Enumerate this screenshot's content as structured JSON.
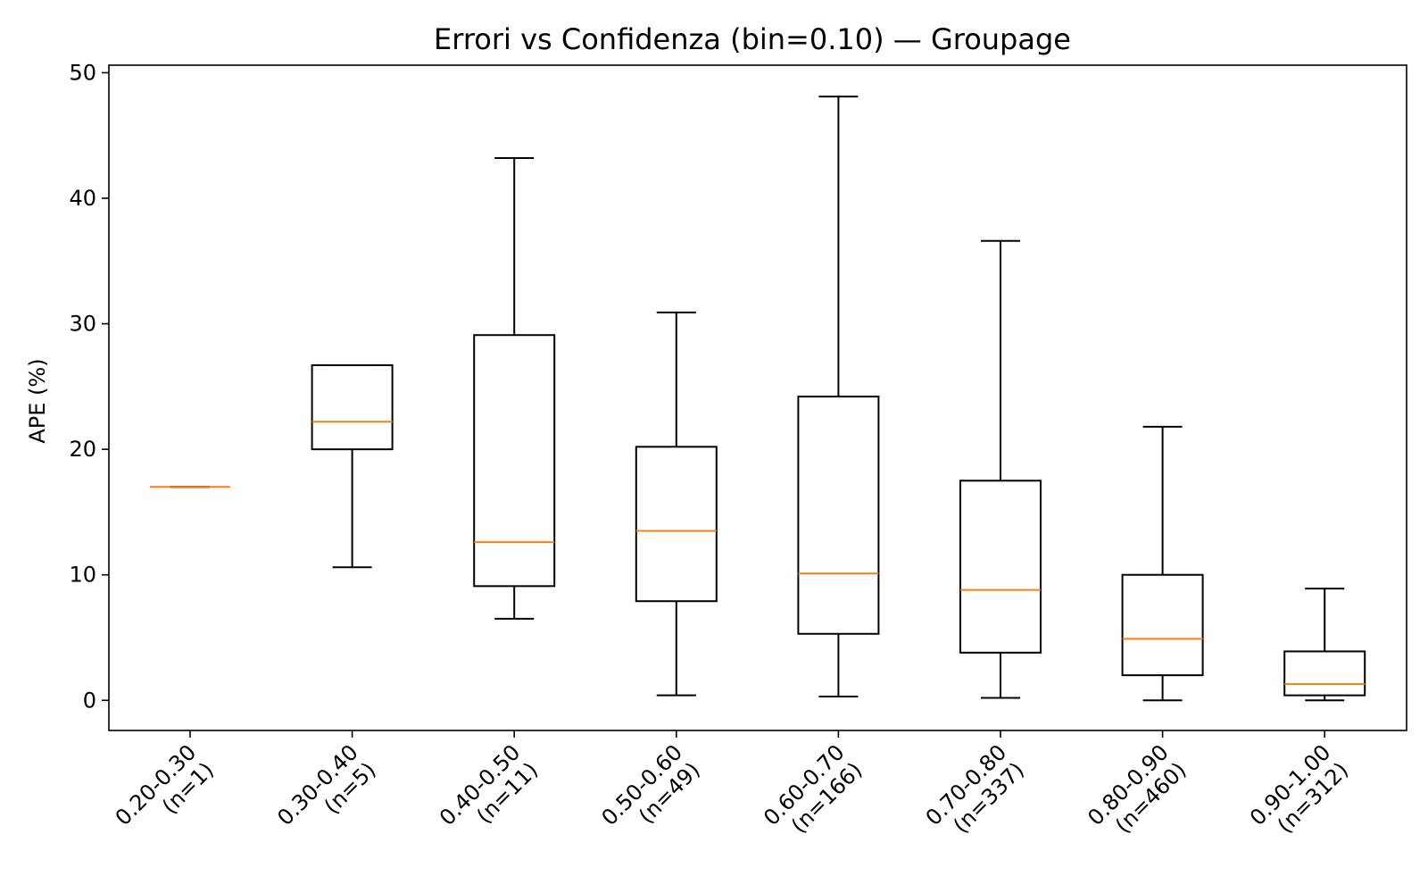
{
  "chart_data": {
    "type": "box",
    "title": "Errori vs Confidenza (bin=0.10) — Groupage",
    "xlabel": "",
    "ylabel": "APE (%)",
    "ylim": [
      -2.4,
      50.6
    ],
    "yticks": [
      0,
      10,
      20,
      30,
      40,
      50
    ],
    "grid": false,
    "colors": {
      "box": "#000000",
      "median": "#ff7f0e",
      "background": "#ffffff"
    },
    "categories": [
      "0.20-0.30\n(n=1)",
      "0.30-0.40\n(n=5)",
      "0.40-0.50\n(n=11)",
      "0.50-0.60\n(n=49)",
      "0.60-0.70\n(n=166)",
      "0.70-0.80\n(n=337)",
      "0.80-0.90\n(n=460)",
      "0.90-1.00\n(n=312)"
    ],
    "boxes": [
      {
        "whisker_low": 17.0,
        "q1": 17.0,
        "median": 17.0,
        "q3": 17.0,
        "whisker_high": 17.0
      },
      {
        "whisker_low": 10.6,
        "q1": 20.0,
        "median": 22.2,
        "q3": 26.7,
        "whisker_high": 26.7
      },
      {
        "whisker_low": 6.5,
        "q1": 9.1,
        "median": 12.6,
        "q3": 29.1,
        "whisker_high": 43.2
      },
      {
        "whisker_low": 0.4,
        "q1": 7.9,
        "median": 13.5,
        "q3": 20.2,
        "whisker_high": 30.9
      },
      {
        "whisker_low": 0.3,
        "q1": 5.3,
        "median": 10.1,
        "q3": 24.2,
        "whisker_high": 48.1
      },
      {
        "whisker_low": 0.2,
        "q1": 3.8,
        "median": 8.8,
        "q3": 17.5,
        "whisker_high": 36.6
      },
      {
        "whisker_low": 0.0,
        "q1": 2.0,
        "median": 4.9,
        "q3": 10.0,
        "whisker_high": 21.8
      },
      {
        "whisker_low": 0.0,
        "q1": 0.4,
        "median": 1.3,
        "q3": 3.9,
        "whisker_high": 8.9
      }
    ]
  }
}
